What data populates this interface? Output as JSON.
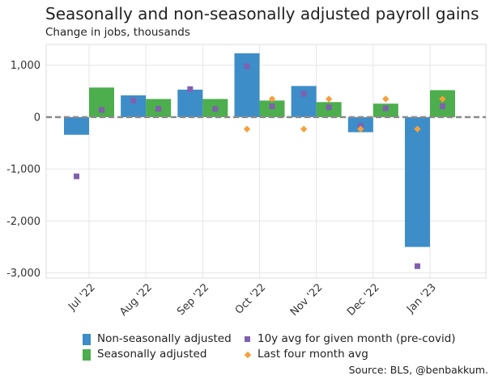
{
  "title": "Seasonally and non-seasonally adjusted payroll gains",
  "subtitle": "Change in jobs, thousands",
  "source": "Source: BLS, @benbakkum.",
  "colors": {
    "nsa": "#3d8dc8",
    "sa": "#4cae4c",
    "avg10y": "#8060b0",
    "last4": "#f5a03a",
    "grid": "#e6e6e6",
    "zero": "#8a8a8a"
  },
  "legend": [
    {
      "label": "Non-seasonally adjusted",
      "color": "#3d8dc8",
      "shape": "bar"
    },
    {
      "label": "Seasonally adjusted",
      "color": "#4cae4c",
      "shape": "bar"
    },
    {
      "label": "10y avg for given month (pre-covid)",
      "color": "#8060b0",
      "shape": "square"
    },
    {
      "label": "Last four month avg",
      "color": "#f5a03a",
      "shape": "diamond"
    }
  ],
  "chart_data": {
    "type": "bar",
    "title": "Seasonally and non-seasonally adjusted payroll gains",
    "subtitle": "Change in jobs, thousands",
    "categories": [
      "Jul '22",
      "Aug '22",
      "Sep '22",
      "Oct '22",
      "Nov '22",
      "Dec '22",
      "Jan '23"
    ],
    "ylim": [
      -3100,
      1400
    ],
    "yticks": [
      -3000,
      -2000,
      -1000,
      0,
      1000
    ],
    "ytick_labels": [
      "-3,000",
      "-2,000",
      "-1,000",
      "0",
      "1,000"
    ],
    "grid": true,
    "legend_position": "bottom",
    "series": [
      {
        "name": "Non-seasonally adjusted",
        "type": "bar",
        "values": [
          -340,
          420,
          530,
          1230,
          600,
          -290,
          -2500
        ]
      },
      {
        "name": "Seasonally adjusted",
        "type": "bar",
        "values": [
          570,
          350,
          350,
          320,
          290,
          260,
          520
        ]
      },
      {
        "name": "10y avg for given month (pre-covid)",
        "type": "scatter",
        "marker": "square",
        "nsa_side": [
          -1140,
          320,
          540,
          980,
          450,
          -170,
          -2870
        ],
        "sa_side": [
          140,
          160,
          160,
          210,
          190,
          170,
          210
        ]
      },
      {
        "name": "Last four month avg",
        "type": "scatter",
        "marker": "diamond",
        "nsa_side": [
          null,
          null,
          null,
          -230,
          -230,
          -230,
          -230
        ],
        "sa_side": [
          null,
          null,
          null,
          350,
          350,
          350,
          350
        ]
      }
    ]
  }
}
